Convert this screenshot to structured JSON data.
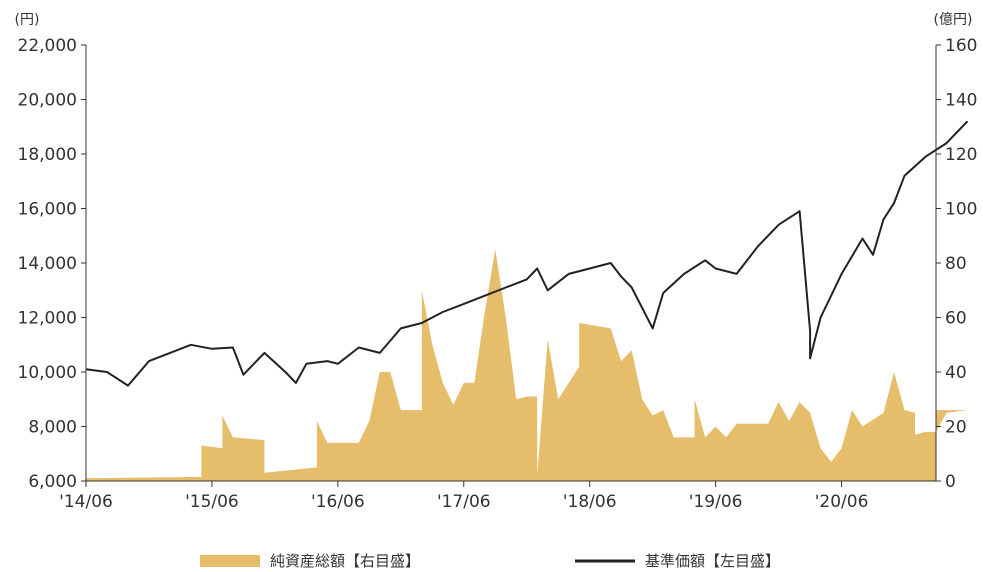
{
  "chart_data": {
    "type": "line",
    "left_unit": "(円)",
    "right_unit": "(億円)",
    "y_left": {
      "min": 6000,
      "max": 22000,
      "ticks": [
        "6,000",
        "8,000",
        "10,000",
        "12,000",
        "14,000",
        "16,000",
        "18,000",
        "20,000",
        "22,000"
      ]
    },
    "y_right": {
      "min": 0,
      "max": 160,
      "ticks": [
        "0",
        "20",
        "40",
        "60",
        "80",
        "100",
        "120",
        "140",
        "160"
      ]
    },
    "x_ticks": [
      "'14/06",
      "'15/06",
      "'16/06",
      "'17/06",
      "'18/06",
      "'19/06",
      "'20/06"
    ],
    "x_range": [
      "2014-06",
      "2021-03"
    ],
    "series": [
      {
        "name": "純資産総額【右目盛】",
        "type": "area",
        "axis": "right",
        "color": "#e6bd6b",
        "points": [
          [
            "2014-06",
            1
          ],
          [
            "2015-05",
            1.5
          ],
          [
            "2015-05",
            13
          ],
          [
            "2015-07",
            12
          ],
          [
            "2015-07",
            24
          ],
          [
            "2015-08",
            16
          ],
          [
            "2015-11",
            15
          ],
          [
            "2015-11",
            3
          ],
          [
            "2016-04",
            5
          ],
          [
            "2016-04",
            22
          ],
          [
            "2016-05",
            14
          ],
          [
            "2016-08",
            14
          ],
          [
            "2016-09",
            22
          ],
          [
            "2016-10",
            40
          ],
          [
            "2016-11",
            40
          ],
          [
            "2016-12",
            26
          ],
          [
            "2017-02",
            26
          ],
          [
            "2017-02",
            70
          ],
          [
            "2017-03",
            50
          ],
          [
            "2017-04",
            36
          ],
          [
            "2017-05",
            28
          ],
          [
            "2017-06",
            36
          ],
          [
            "2017-07",
            36
          ],
          [
            "2017-08",
            62
          ],
          [
            "2017-09",
            85
          ],
          [
            "2017-10",
            60
          ],
          [
            "2017-11",
            30
          ],
          [
            "2017-12",
            31
          ],
          [
            "2018-01",
            31
          ],
          [
            "2018-01",
            2
          ],
          [
            "2018-02",
            52
          ],
          [
            "2018-03",
            30
          ],
          [
            "2018-05",
            42
          ],
          [
            "2018-05",
            58
          ],
          [
            "2018-08",
            56
          ],
          [
            "2018-09",
            44
          ],
          [
            "2018-10",
            48
          ],
          [
            "2018-11",
            30
          ],
          [
            "2018-12",
            24
          ],
          [
            "2019-01",
            26
          ],
          [
            "2019-02",
            16
          ],
          [
            "2019-04",
            16
          ],
          [
            "2019-04",
            30
          ],
          [
            "2019-05",
            16
          ],
          [
            "2019-06",
            20
          ],
          [
            "2019-07",
            16
          ],
          [
            "2019-08",
            21
          ],
          [
            "2019-11",
            21
          ],
          [
            "2019-12",
            29
          ],
          [
            "2020-01",
            22
          ],
          [
            "2020-02",
            29
          ],
          [
            "2020-03",
            25
          ],
          [
            "2020-04",
            12
          ],
          [
            "2020-05",
            7
          ],
          [
            "2020-06",
            12
          ],
          [
            "2020-07",
            26
          ],
          [
            "2020-08",
            20
          ],
          [
            "2020-10",
            25
          ],
          [
            "2020-11",
            40
          ],
          [
            "2020-12",
            26
          ],
          [
            "2021-01",
            25
          ],
          [
            "2021-01",
            17
          ],
          [
            "2021-02",
            18
          ],
          [
            "2021-03",
            18
          ],
          [
            "2021-04",
            25
          ],
          [
            "2021-06",
            26
          ]
        ]
      },
      {
        "name": "基準価額【左目盛】",
        "type": "line",
        "axis": "left",
        "color": "#222222",
        "points": [
          [
            "2014-06",
            10100
          ],
          [
            "2014-08",
            10000
          ],
          [
            "2014-10",
            9500
          ],
          [
            "2014-12",
            10400
          ],
          [
            "2015-02",
            10700
          ],
          [
            "2015-04",
            11000
          ],
          [
            "2015-06",
            10850
          ],
          [
            "2015-08",
            10900
          ],
          [
            "2015-09",
            9900
          ],
          [
            "2015-11",
            10700
          ],
          [
            "2016-01",
            10000
          ],
          [
            "2016-02",
            9600
          ],
          [
            "2016-03",
            10300
          ],
          [
            "2016-05",
            10400
          ],
          [
            "2016-06",
            10300
          ],
          [
            "2016-08",
            10900
          ],
          [
            "2016-10",
            10700
          ],
          [
            "2016-12",
            11600
          ],
          [
            "2017-02",
            11800
          ],
          [
            "2017-04",
            12200
          ],
          [
            "2017-06",
            12500
          ],
          [
            "2017-08",
            12800
          ],
          [
            "2017-10",
            13100
          ],
          [
            "2017-12",
            13400
          ],
          [
            "2018-01",
            13800
          ],
          [
            "2018-02",
            13000
          ],
          [
            "2018-04",
            13600
          ],
          [
            "2018-06",
            13800
          ],
          [
            "2018-08",
            14000
          ],
          [
            "2018-09",
            13500
          ],
          [
            "2018-10",
            13100
          ],
          [
            "2018-12",
            11600
          ],
          [
            "2019-01",
            12900
          ],
          [
            "2019-03",
            13600
          ],
          [
            "2019-05",
            14100
          ],
          [
            "2019-06",
            13800
          ],
          [
            "2019-08",
            13600
          ],
          [
            "2019-10",
            14600
          ],
          [
            "2019-12",
            15400
          ],
          [
            "2020-02",
            15900
          ],
          [
            "2020-03",
            11500
          ],
          [
            "2020-03",
            10500
          ],
          [
            "2020-04",
            12000
          ],
          [
            "2020-06",
            13600
          ],
          [
            "2020-08",
            14900
          ],
          [
            "2020-09",
            14300
          ],
          [
            "2020-10",
            15600
          ],
          [
            "2020-11",
            16200
          ],
          [
            "2020-12",
            17200
          ],
          [
            "2021-02",
            17900
          ],
          [
            "2021-04",
            18400
          ],
          [
            "2021-05",
            18800
          ],
          [
            "2021-06",
            19200
          ]
        ]
      }
    ],
    "legend": {
      "position": "bottom",
      "items": [
        {
          "label": "純資産総額【右目盛】",
          "kind": "area",
          "color": "#e6bd6b"
        },
        {
          "label": "基準価額【左目盛】",
          "kind": "line",
          "color": "#222222"
        }
      ]
    }
  }
}
